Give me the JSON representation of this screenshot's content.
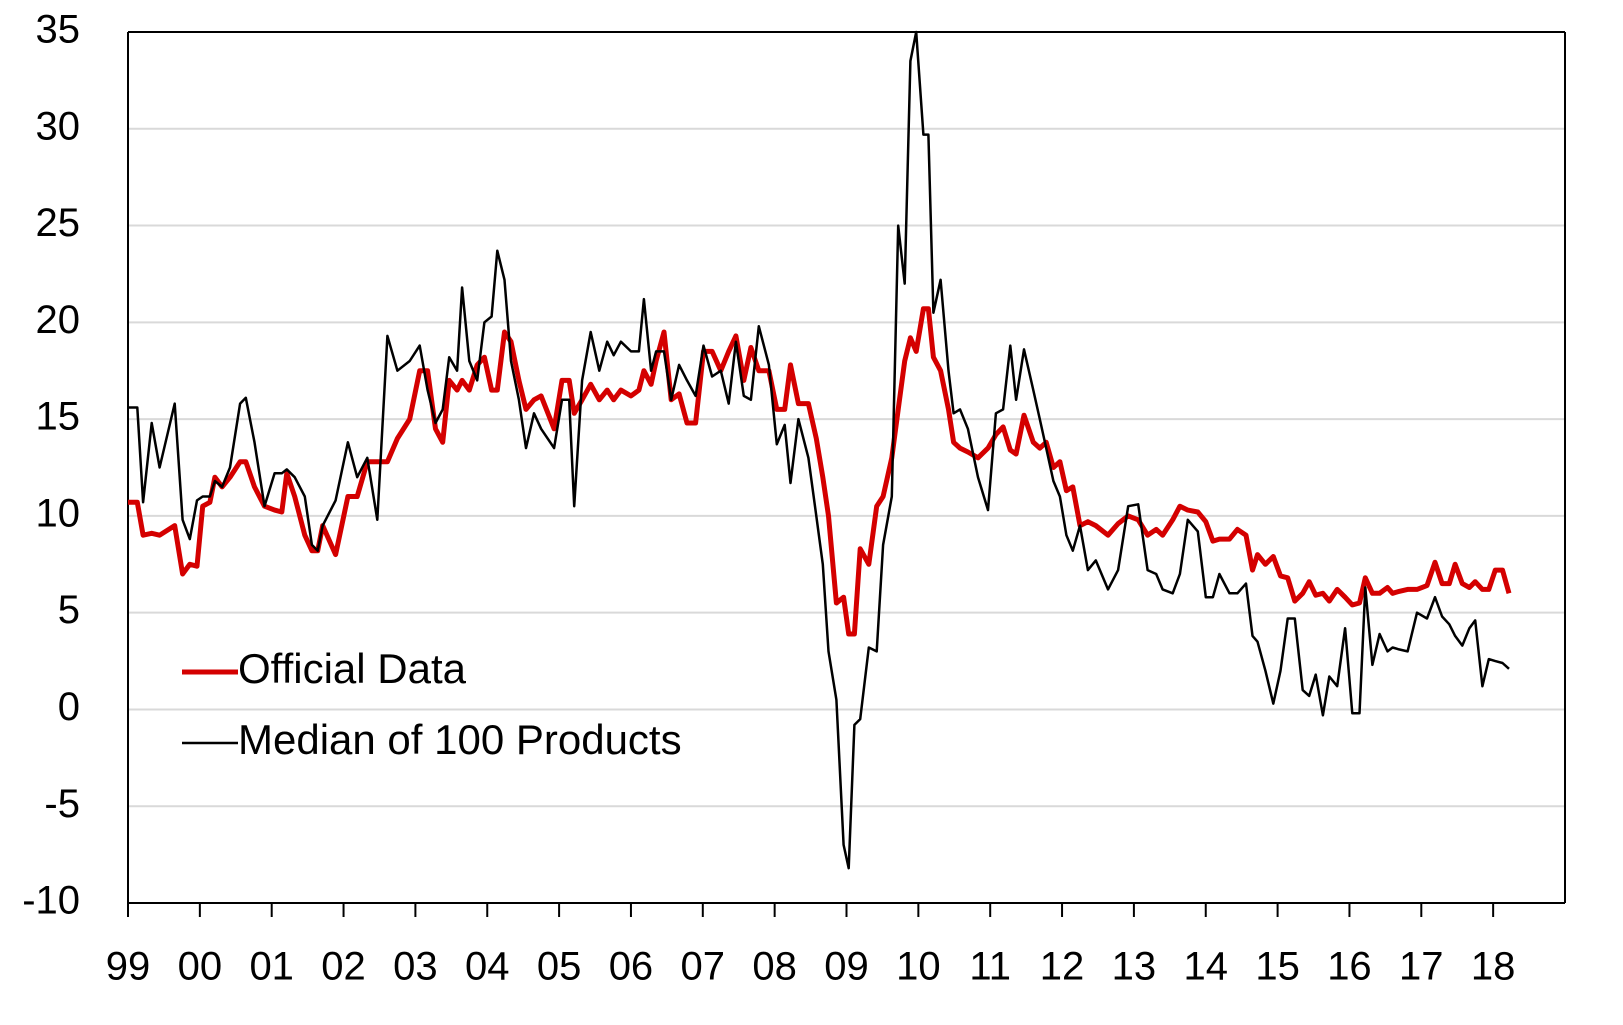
{
  "chart_data": {
    "type": "line",
    "x": [
      1999.0,
      1999.13,
      1999.21,
      1999.33,
      1999.44,
      1999.65,
      1999.76,
      1999.86,
      1999.96,
      2000.04,
      2000.14,
      2000.21,
      2000.31,
      2000.42,
      2000.56,
      2000.64,
      2000.76,
      2000.9,
      2001.04,
      2001.14,
      2001.21,
      2001.32,
      2001.46,
      2001.56,
      2001.64,
      2001.71,
      2001.89,
      2002.06,
      2002.19,
      2002.33,
      2002.47,
      2002.61,
      2002.75,
      2002.92,
      2003.06,
      2003.17,
      2003.28,
      2003.38,
      2003.47,
      2003.58,
      2003.65,
      2003.75,
      2003.86,
      2003.96,
      2004.06,
      2004.14,
      2004.24,
      2004.33,
      2004.44,
      2004.54,
      2004.65,
      2004.75,
      2004.93,
      2005.04,
      2005.14,
      2005.21,
      2005.32,
      2005.44,
      2005.56,
      2005.67,
      2005.76,
      2005.86,
      2006.0,
      2006.11,
      2006.18,
      2006.28,
      2006.35,
      2006.46,
      2006.56,
      2006.67,
      2006.78,
      2006.9,
      2007.01,
      2007.13,
      2007.25,
      2007.36,
      2007.46,
      2007.57,
      2007.67,
      2007.78,
      2007.92,
      2008.03,
      2008.14,
      2008.22,
      2008.33,
      2008.47,
      2008.58,
      2008.67,
      2008.75,
      2008.86,
      2008.96,
      2009.03,
      2009.11,
      2009.19,
      2009.31,
      2009.42,
      2009.51,
      2009.63,
      2009.72,
      2009.81,
      2009.89,
      2009.97,
      2010.07,
      2010.14,
      2010.21,
      2010.31,
      2010.42,
      2010.49,
      2010.58,
      2010.69,
      2010.83,
      2010.97,
      2011.08,
      2011.18,
      2011.28,
      2011.36,
      2011.47,
      2011.6,
      2011.69,
      2011.78,
      2011.88,
      2011.97,
      2012.06,
      2012.15,
      2012.25,
      2012.36,
      2012.47,
      2012.64,
      2012.78,
      2012.92,
      2013.06,
      2013.19,
      2013.31,
      2013.4,
      2013.54,
      2013.64,
      2013.75,
      2013.89,
      2014.0,
      2014.1,
      2014.19,
      2014.33,
      2014.44,
      2014.56,
      2014.65,
      2014.72,
      2014.83,
      2014.94,
      2015.04,
      2015.14,
      2015.24,
      2015.35,
      2015.44,
      2015.53,
      2015.63,
      2015.72,
      2015.83,
      2015.94,
      2016.04,
      2016.14,
      2016.22,
      2016.32,
      2016.42,
      2016.53,
      2016.6,
      2016.69,
      2016.81,
      2016.94,
      2017.08,
      2017.19,
      2017.29,
      2017.39,
      2017.47,
      2017.57,
      2017.67,
      2017.75,
      2017.85,
      2017.94,
      2018.03,
      2018.13,
      2018.22
    ],
    "series": [
      {
        "name": "Official Data",
        "color": "#d40000",
        "width": 5,
        "values": [
          10.7,
          10.7,
          9.0,
          9.1,
          9.0,
          9.5,
          7.0,
          7.5,
          7.4,
          10.5,
          10.7,
          12.0,
          11.5,
          12.0,
          12.8,
          12.8,
          11.5,
          10.5,
          10.3,
          10.2,
          12.2,
          11.0,
          9.0,
          8.2,
          8.2,
          9.5,
          8.0,
          11.0,
          11.0,
          12.8,
          12.8,
          12.8,
          14.0,
          15.0,
          17.5,
          17.5,
          14.5,
          13.8,
          17.0,
          16.5,
          17.0,
          16.5,
          17.8,
          18.2,
          16.5,
          16.5,
          19.5,
          19.0,
          17.0,
          15.5,
          16.0,
          16.2,
          14.5,
          17.0,
          17.0,
          15.3,
          16.0,
          16.8,
          16.0,
          16.5,
          16.0,
          16.5,
          16.2,
          16.5,
          17.5,
          16.8,
          18.0,
          19.5,
          16.0,
          16.3,
          14.8,
          14.8,
          18.5,
          18.5,
          17.5,
          18.5,
          19.3,
          17.0,
          18.7,
          17.5,
          17.5,
          15.5,
          15.5,
          17.8,
          15.8,
          15.8,
          14.0,
          12.0,
          10.0,
          5.5,
          5.8,
          3.9,
          3.9,
          8.3,
          7.5,
          10.5,
          11.0,
          13.0,
          15.5,
          18.0,
          19.2,
          18.5,
          20.7,
          20.7,
          18.2,
          17.5,
          15.5,
          13.8,
          13.5,
          13.3,
          13.0,
          13.5,
          14.2,
          14.6,
          13.4,
          13.2,
          15.2,
          13.8,
          13.5,
          13.8,
          12.5,
          12.8,
          11.3,
          11.5,
          9.5,
          9.7,
          9.5,
          9.0,
          9.6,
          10.0,
          9.8,
          9.0,
          9.3,
          9.0,
          9.8,
          10.5,
          10.3,
          10.2,
          9.7,
          8.7,
          8.8,
          8.8,
          9.3,
          9.0,
          7.2,
          8.0,
          7.5,
          7.9,
          6.9,
          6.8,
          5.6,
          6.0,
          6.6,
          5.9,
          6.0,
          5.6,
          6.2,
          5.8,
          5.4,
          5.5,
          6.8,
          6.0,
          6.0,
          6.3,
          6.0,
          6.1,
          6.2,
          6.2,
          6.4,
          7.6,
          6.5,
          6.5,
          7.5,
          6.5,
          6.3,
          6.6,
          6.2,
          6.2,
          7.2,
          7.2,
          6.0
        ]
      },
      {
        "name": "Median of 100 Products",
        "color": "#000000",
        "width": 2.5,
        "values": [
          15.6,
          15.6,
          10.7,
          14.8,
          12.5,
          15.8,
          9.8,
          8.8,
          10.8,
          11.0,
          11.0,
          11.8,
          11.5,
          12.5,
          15.8,
          16.1,
          13.8,
          10.5,
          12.2,
          12.2,
          12.4,
          12.0,
          11.0,
          8.5,
          8.2,
          9.5,
          10.8,
          13.8,
          12.0,
          13.0,
          9.8,
          19.3,
          17.5,
          18.0,
          18.8,
          16.5,
          14.8,
          15.5,
          18.2,
          17.5,
          21.8,
          18.0,
          17.0,
          20.0,
          20.3,
          23.7,
          22.2,
          18.0,
          16.0,
          13.5,
          15.3,
          14.5,
          13.5,
          16.0,
          16.0,
          10.5,
          17.0,
          19.5,
          17.5,
          19.0,
          18.3,
          19.0,
          18.5,
          18.5,
          21.2,
          17.5,
          18.5,
          18.5,
          16.0,
          17.8,
          17.0,
          16.2,
          18.8,
          17.2,
          17.5,
          15.8,
          19.0,
          16.2,
          16.0,
          19.8,
          17.8,
          13.7,
          14.7,
          11.7,
          15.0,
          13.0,
          10.0,
          7.5,
          3.0,
          0.5,
          -7.0,
          -8.2,
          -0.8,
          -0.5,
          3.2,
          3.0,
          8.5,
          11.0,
          25.0,
          22.0,
          33.5,
          35.0,
          29.7,
          29.7,
          20.5,
          22.2,
          17.5,
          15.3,
          15.5,
          14.5,
          12.0,
          10.3,
          15.3,
          15.5,
          18.8,
          16.0,
          18.6,
          16.5,
          15.0,
          13.5,
          11.8,
          11.0,
          9.0,
          8.2,
          9.5,
          7.2,
          7.7,
          6.2,
          7.2,
          10.5,
          10.6,
          7.2,
          7.0,
          6.2,
          6.0,
          7.0,
          9.8,
          9.2,
          5.8,
          5.8,
          7.0,
          6.0,
          6.0,
          6.5,
          3.8,
          3.5,
          2.0,
          0.3,
          2.0,
          4.7,
          4.7,
          1.0,
          0.7,
          1.8,
          -0.3,
          1.7,
          1.2,
          4.2,
          -0.2,
          -0.2,
          6.3,
          2.3,
          3.9,
          3.0,
          3.2,
          3.1,
          3.0,
          5.0,
          4.7,
          5.8,
          4.8,
          4.4,
          3.8,
          3.3,
          4.2,
          4.6,
          1.2,
          2.6,
          2.5,
          2.4,
          2.1
        ]
      }
    ],
    "xlim": [
      1999,
      2019
    ],
    "xticks": [
      {
        "value": 1999,
        "label": "99"
      },
      {
        "value": 2000,
        "label": "00"
      },
      {
        "value": 2001,
        "label": "01"
      },
      {
        "value": 2002,
        "label": "02"
      },
      {
        "value": 2003,
        "label": "03"
      },
      {
        "value": 2004,
        "label": "04"
      },
      {
        "value": 2005,
        "label": "05"
      },
      {
        "value": 2006,
        "label": "06"
      },
      {
        "value": 2007,
        "label": "07"
      },
      {
        "value": 2008,
        "label": "08"
      },
      {
        "value": 2009,
        "label": "09"
      },
      {
        "value": 2010,
        "label": "10"
      },
      {
        "value": 2011,
        "label": "11"
      },
      {
        "value": 2012,
        "label": "12"
      },
      {
        "value": 2013,
        "label": "13"
      },
      {
        "value": 2014,
        "label": "14"
      },
      {
        "value": 2015,
        "label": "15"
      },
      {
        "value": 2016,
        "label": "16"
      },
      {
        "value": 2017,
        "label": "17"
      },
      {
        "value": 2018,
        "label": "18"
      }
    ],
    "ylim": [
      -10,
      35
    ],
    "yticks": [
      -10,
      -5,
      0,
      5,
      10,
      15,
      20,
      25,
      30,
      35
    ],
    "grid": true,
    "legend": "lower left"
  }
}
